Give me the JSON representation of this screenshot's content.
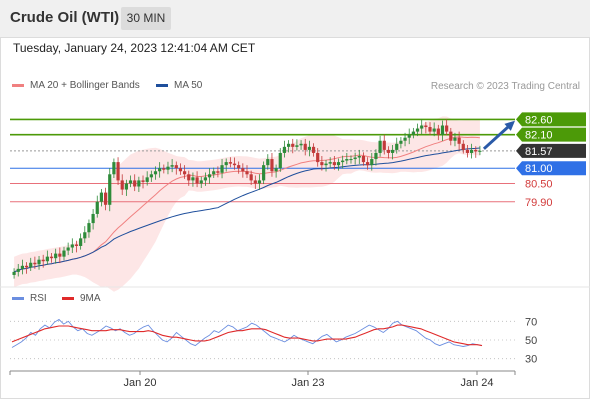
{
  "header": {
    "title": "Crude Oil (WTI)",
    "timeframe": "30 MIN"
  },
  "timestamp": "Tuesday, January 24, 2023 12:41:04 AM CET",
  "credit": "Research © 2023 Trading Central",
  "colors": {
    "resistance": "#4c9a08",
    "support": "#2f70e6",
    "support_minor": "#e8707a",
    "current": "#333333",
    "bull": "#2e8b3a",
    "bear": "#c23a3a",
    "ma20": "#f08080",
    "ma50": "#1f4f9c",
    "band": "#fde3e3",
    "rsi": "#6b8ee0",
    "rsi_ma": "#e02a2a",
    "arrow": "#2a5aa8"
  },
  "chart_data": [
    {
      "type": "candlestick",
      "title": "Crude Oil (WTI)",
      "timeframe": "30 MIN",
      "ylim": [
        77.4,
        83.4
      ],
      "x_ticks": [
        "Jan 20",
        "Jan 23",
        "Jan 24"
      ],
      "legend": [
        "MA 20 + Bollinger Bands",
        "MA 50"
      ],
      "closes": [
        77.6,
        77.7,
        77.8,
        77.75,
        77.9,
        77.85,
        78.0,
        77.95,
        78.1,
        78.05,
        78.2,
        78.1,
        78.3,
        78.4,
        78.5,
        78.45,
        78.7,
        78.9,
        79.2,
        79.5,
        79.9,
        80.2,
        79.8,
        80.8,
        81.2,
        80.6,
        80.3,
        80.5,
        80.6,
        80.4,
        80.6,
        80.55,
        80.7,
        80.8,
        80.9,
        81.0,
        80.95,
        81.05,
        81.1,
        81.0,
        80.9,
        80.8,
        80.6,
        80.7,
        80.5,
        80.6,
        80.7,
        80.8,
        80.9,
        80.85,
        81.1,
        81.2,
        81.15,
        81.1,
        81.0,
        80.9,
        80.8,
        80.6,
        80.5,
        80.6,
        81.1,
        81.3,
        80.9,
        81.0,
        81.5,
        81.7,
        81.8,
        81.7,
        81.75,
        81.8,
        81.6,
        81.7,
        81.5,
        81.2,
        81.1,
        81.15,
        81.2,
        81.1,
        81.2,
        81.25,
        81.3,
        81.3,
        81.35,
        81.4,
        81.2,
        81.1,
        81.3,
        81.5,
        81.9,
        81.6,
        81.5,
        81.6,
        81.8,
        81.9,
        82.0,
        82.1,
        82.2,
        82.3,
        82.4,
        82.35,
        82.2,
        82.3,
        82.1,
        82.4,
        82.2,
        81.9,
        82.0,
        81.8,
        81.6,
        81.5,
        81.6,
        81.55,
        81.57
      ],
      "levels": [
        {
          "value": 82.6,
          "label": "82.60",
          "kind": "resistance"
        },
        {
          "value": 82.1,
          "label": "82.10",
          "kind": "resistance"
        },
        {
          "value": 81.57,
          "label": "81.57",
          "kind": "current"
        },
        {
          "value": 81.0,
          "label": "81.00",
          "kind": "support"
        },
        {
          "value": 80.5,
          "label": "80.50",
          "kind": "support_minor"
        },
        {
          "value": 79.9,
          "label": "79.90",
          "kind": "support_minor"
        }
      ]
    },
    {
      "type": "line",
      "title": "RSI",
      "legend": [
        "RSI",
        "9MA"
      ],
      "ylim": [
        20,
        80
      ],
      "y_ticks": [
        70,
        50,
        30
      ],
      "series": [
        {
          "name": "RSI",
          "values": [
            42,
            45,
            48,
            52,
            58,
            55,
            62,
            66,
            63,
            69,
            72,
            67,
            70,
            64,
            60,
            62,
            57,
            55,
            58,
            61,
            65,
            63,
            60,
            62,
            58,
            55,
            57,
            61,
            64,
            66,
            60,
            55,
            50,
            48,
            52,
            58,
            54,
            50,
            46,
            44,
            48,
            52,
            55,
            60,
            58,
            62,
            66,
            64,
            60,
            62,
            64,
            68,
            66,
            62,
            58,
            54,
            52,
            50,
            48,
            51,
            55,
            52,
            50,
            48,
            46,
            50,
            54,
            56,
            52,
            48,
            50,
            53,
            55,
            57,
            60,
            63,
            66,
            64,
            61,
            58,
            62,
            68,
            70,
            66,
            64,
            62,
            60,
            56,
            52,
            50,
            46,
            44,
            46,
            48,
            45,
            44,
            43,
            44,
            46,
            45,
            44
          ]
        },
        {
          "name": "9MA",
          "values": [
            48,
            50,
            52,
            54,
            56,
            58,
            60,
            62,
            63,
            64,
            65,
            65,
            65,
            64,
            63,
            62,
            61,
            60,
            60,
            60,
            60,
            61,
            61,
            61,
            60,
            59,
            59,
            59,
            59,
            60,
            59,
            57,
            55,
            54,
            53,
            53,
            52,
            51,
            50,
            49,
            49,
            49,
            50,
            52,
            54,
            56,
            58,
            59,
            60,
            60,
            61,
            62,
            62,
            62,
            61,
            59,
            57,
            55,
            53,
            52,
            52,
            52,
            51,
            50,
            49,
            49,
            50,
            51,
            51,
            51,
            51,
            51,
            52,
            53,
            55,
            57,
            59,
            61,
            62,
            62,
            63,
            64,
            66,
            66,
            65,
            64,
            63,
            62,
            60,
            58,
            56,
            54,
            52,
            50,
            48,
            47,
            46,
            45,
            45,
            45,
            44
          ]
        }
      ]
    }
  ]
}
